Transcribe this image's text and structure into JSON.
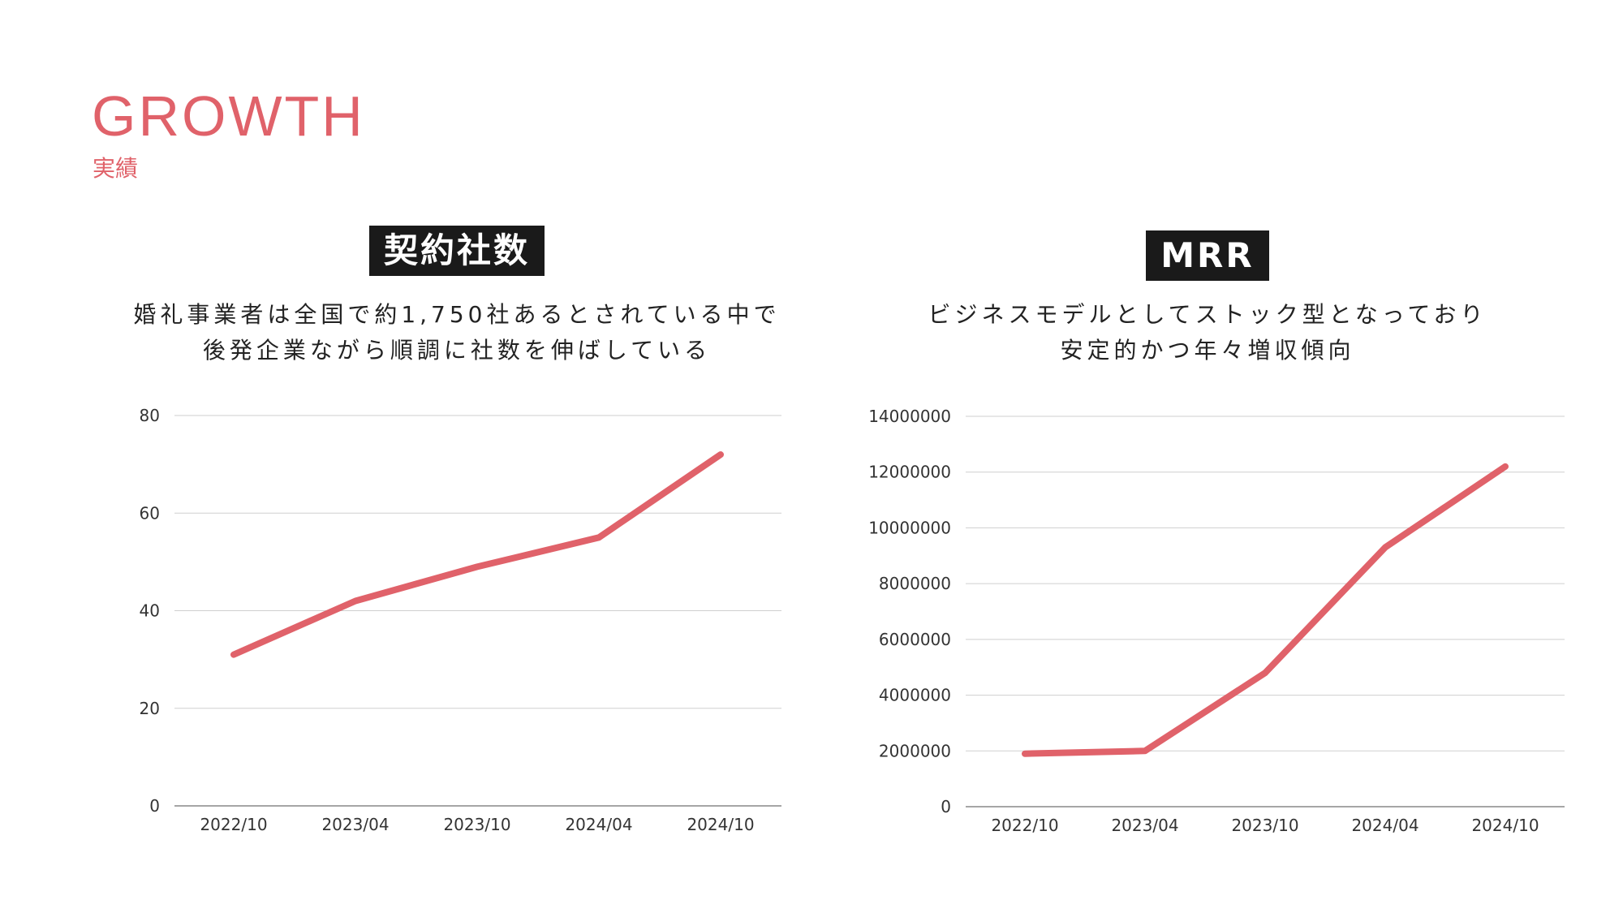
{
  "header": {
    "title": "GROWTH",
    "subtitle": "実績",
    "accent_color": "#E0626A"
  },
  "panels": [
    {
      "badge": "契約社数",
      "desc_lines": [
        "婚礼事業者は全国で約1,750社あるとされている中で",
        "後発企業ながら順調に社数を伸ばしている"
      ]
    },
    {
      "badge": "MRR",
      "desc_lines": [
        "ビジネスモデルとしてストック型となっており",
        "安定的かつ年々増収傾向"
      ]
    }
  ],
  "badge_color": "#1a1a1a",
  "chart_data": [
    {
      "type": "line",
      "categories": [
        "2022/10",
        "2023/04",
        "2023/10",
        "2024/04",
        "2024/10"
      ],
      "series": [
        {
          "values": [
            31,
            42,
            49,
            55,
            72
          ],
          "color": "#E0626A"
        }
      ],
      "ylim": [
        0,
        80
      ],
      "yticks": [
        0,
        20,
        40,
        60,
        80
      ],
      "grid": true
    },
    {
      "type": "line",
      "categories": [
        "2022/10",
        "2023/04",
        "2023/10",
        "2024/04",
        "2024/10"
      ],
      "series": [
        {
          "values": [
            1900000,
            2000000,
            4800000,
            9300000,
            12200000
          ],
          "color": "#E0626A"
        }
      ],
      "ylim": [
        0,
        14000000
      ],
      "yticks": [
        0,
        2000000,
        4000000,
        6000000,
        8000000,
        10000000,
        12000000,
        14000000
      ],
      "grid": true
    }
  ]
}
